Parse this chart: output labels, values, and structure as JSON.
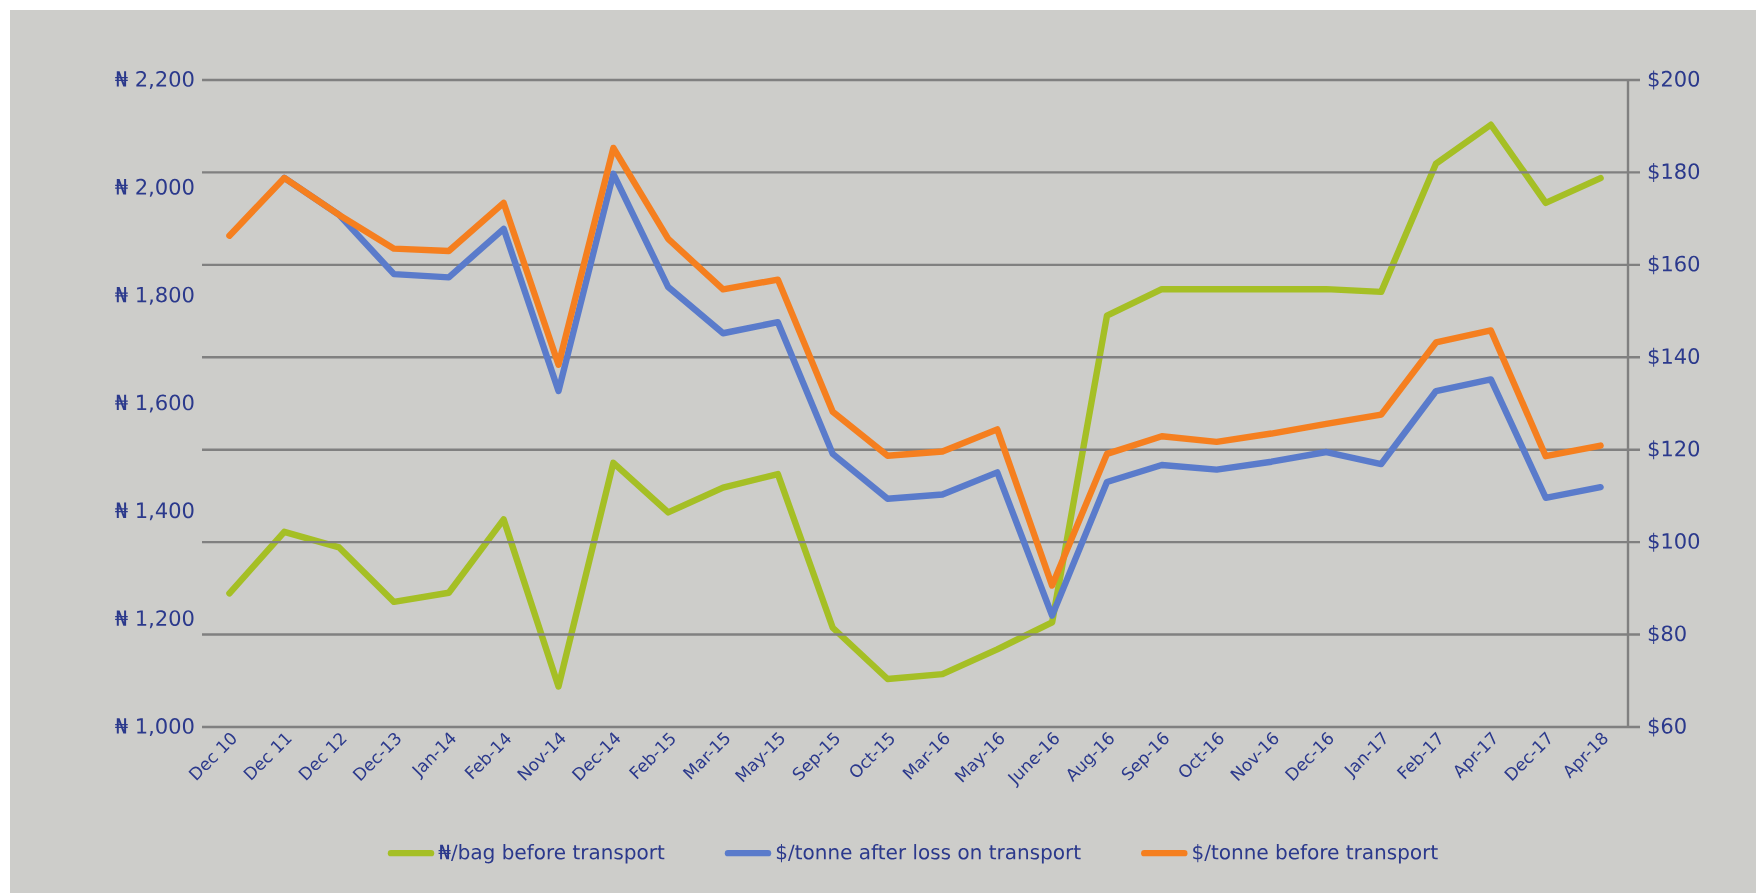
{
  "chart_data": {
    "type": "line",
    "categories": [
      "Dec 10",
      "Dec 11",
      "Dec 12",
      "Dec-13",
      "Jan-14",
      "Feb-14",
      "Nov-14",
      "Dec-14",
      "Feb-15",
      "Mar-15",
      "May-15",
      "Sep-15",
      "Oct-15",
      "Mar-16",
      "May-16",
      "June-16",
      "Aug-16",
      "Sep-16",
      "Oct-16",
      "Nov-16",
      "Dec-16",
      "Jan-17",
      "Feb-17",
      "Apr-17",
      "Dec-17",
      "Apr-18"
    ],
    "series": [
      {
        "name": "₦/bag before transport",
        "color": "#a5bf25",
        "values": [
          1248,
          1362,
          1333,
          1232,
          1249,
          1385,
          1075,
          1490,
          1398,
          1444,
          1469,
          1184,
          1089,
          1098,
          1144,
          1194,
          1763,
          1812,
          1812,
          1812,
          1812,
          1807,
          2045,
          2117,
          1972,
          2018
        ]
      },
      {
        "name": "$/tonne after loss on transport",
        "color": "#5a7bcb",
        "axis": "y2",
        "values": [
          null,
          178.8,
          170.8,
          158.0,
          157.3,
          167.8,
          132.7,
          179.7,
          155.2,
          145.2,
          147.6,
          119.1,
          109.4,
          110.3,
          115.1,
          84.1,
          113.0,
          116.7,
          115.7,
          117.4,
          119.5,
          116.9,
          132.7,
          135.2,
          109.6,
          111.9
        ]
      },
      {
        "name": "$/tonne before transport",
        "color": "#f57f1f",
        "axis": "y2",
        "values": [
          166.3,
          178.8,
          170.8,
          163.5,
          163.0,
          173.4,
          138.4,
          185.3,
          165.6,
          154.7,
          156.8,
          128.2,
          118.7,
          119.6,
          124.4,
          90.6,
          119.1,
          122.9,
          121.7,
          123.5,
          125.6,
          127.6,
          143.2,
          145.8,
          118.6,
          120.9
        ]
      }
    ],
    "ylim": [
      1000,
      2200
    ],
    "yticks": [
      {
        "value": 1000,
        "label": "₦ 1,000"
      },
      {
        "value": 1200,
        "label": "₦ 1,200"
      },
      {
        "value": 1400,
        "label": "₦ 1,400"
      },
      {
        "value": 1600,
        "label": "₦ 1,600"
      },
      {
        "value": 1800,
        "label": "₦ 1,800"
      },
      {
        "value": 2000,
        "label": "₦ 2,000"
      },
      {
        "value": 2200,
        "label": "₦ 2,200"
      }
    ],
    "y2lim": [
      60,
      200
    ],
    "y2ticks": [
      {
        "value": 60,
        "label": "$60"
      },
      {
        "value": 80,
        "label": "$80"
      },
      {
        "value": 100,
        "label": "$100"
      },
      {
        "value": 120,
        "label": "$120"
      },
      {
        "value": 140,
        "label": "$140"
      },
      {
        "value": 160,
        "label": "$160"
      },
      {
        "value": 180,
        "label": "$180"
      },
      {
        "value": 200,
        "label": "$200"
      }
    ],
    "grid": "y",
    "legend": "bottom",
    "marker": "none",
    "line_style": "solid"
  }
}
